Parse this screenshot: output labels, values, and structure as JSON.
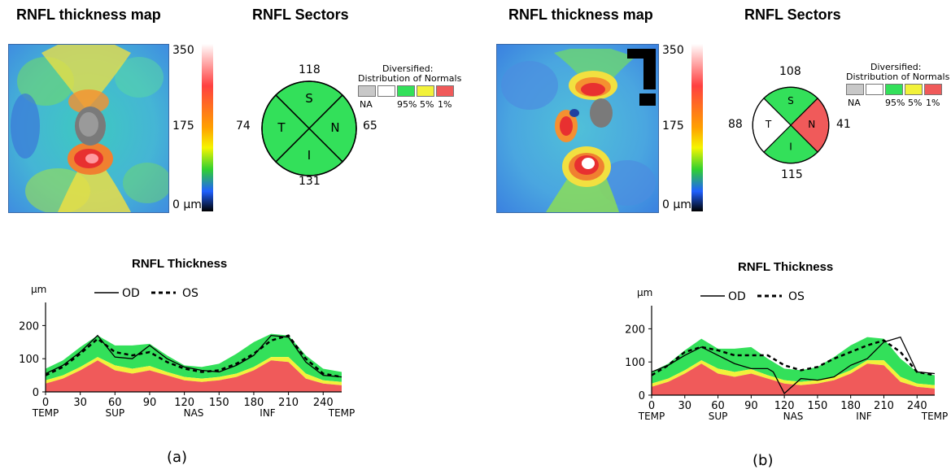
{
  "panels": [
    {
      "caption": "(a)",
      "map_title": "RNFL thickness map",
      "sectors_title": "RNFL Sectors",
      "scale_labels": {
        "top": "350",
        "mid": "175",
        "bottom": "0 µm"
      },
      "sectors": {
        "S": {
          "label": "S",
          "value": "118",
          "color": "#33e05a"
        },
        "N": {
          "label": "N",
          "value": "65",
          "color": "#33e05a"
        },
        "I": {
          "label": "I",
          "value": "131",
          "color": "#33e05a"
        },
        "T": {
          "label": "T",
          "value": "74",
          "color": "#33e05a"
        }
      },
      "legend": {
        "title_line1": "Diversified:",
        "title_line2": "Distribution of Normals",
        "labels": [
          "NA",
          "95%",
          "5%",
          "1%"
        ]
      },
      "chart_title": "RNFL Thickness",
      "chart_series_labels": [
        "OD",
        "OS"
      ]
    },
    {
      "caption": "(b)",
      "map_title": "RNFL thickness map",
      "sectors_title": "RNFL Sectors",
      "scale_labels": {
        "top": "350",
        "mid": "175",
        "bottom": "0 µm"
      },
      "sectors": {
        "S": {
          "label": "S",
          "value": "108",
          "color": "#33e05a"
        },
        "N": {
          "label": "N",
          "value": "41",
          "color": "#f05a5a"
        },
        "I": {
          "label": "I",
          "value": "115",
          "color": "#33e05a"
        },
        "T": {
          "label": "T",
          "value": "88",
          "color": "#ffffff"
        }
      },
      "legend": {
        "title_line1": "Diversified:",
        "title_line2": "Distribution of Normals",
        "labels": [
          "NA",
          "95%",
          "5%",
          "1%"
        ]
      },
      "chart_title": "RNFL Thickness",
      "chart_series_labels": [
        "OD",
        "OS"
      ]
    }
  ],
  "legend_colors": {
    "NA": "#c8c8c8",
    "normal_upper": "#ffffff",
    "p95": "#33e05a",
    "p5": "#f2f23a",
    "p1": "#f05a5a"
  },
  "chart_data": [
    {
      "type": "line",
      "title": "RNFL Thickness",
      "ylabel": "µm",
      "xlim": [
        0,
        256
      ],
      "ylim": [
        0,
        250
      ],
      "xticks": [
        0,
        30,
        60,
        90,
        120,
        150,
        180,
        210,
        240
      ],
      "yticks": [
        0,
        100,
        200
      ],
      "region_labels": [
        {
          "x": 0,
          "text": "TEMP"
        },
        {
          "x": 60,
          "text": "SUP"
        },
        {
          "x": 128,
          "text": "NAS"
        },
        {
          "x": 192,
          "text": "INF"
        },
        {
          "x": 256,
          "text": "TEMP"
        }
      ],
      "x": [
        0,
        15,
        30,
        45,
        60,
        75,
        90,
        105,
        120,
        135,
        150,
        165,
        180,
        195,
        210,
        225,
        240,
        256
      ],
      "bands": {
        "p1_upper": [
          25,
          40,
          65,
          95,
          65,
          55,
          65,
          50,
          35,
          30,
          35,
          45,
          65,
          95,
          90,
          40,
          25,
          20
        ],
        "p5_upper": [
          35,
          50,
          75,
          105,
          80,
          70,
          78,
          60,
          45,
          40,
          45,
          55,
          75,
          105,
          105,
          55,
          35,
          30
        ],
        "p95_upper": [
          70,
          95,
          135,
          170,
          140,
          140,
          145,
          110,
          80,
          75,
          85,
          115,
          150,
          175,
          170,
          110,
          70,
          60
        ]
      },
      "series": [
        {
          "name": "OD",
          "values": [
            55,
            80,
            120,
            170,
            105,
            100,
            140,
            100,
            75,
            65,
            60,
            80,
            110,
            170,
            165,
            90,
            50,
            45
          ]
        },
        {
          "name": "OS",
          "values": [
            50,
            75,
            115,
            160,
            120,
            110,
            120,
            90,
            70,
            60,
            65,
            85,
            115,
            155,
            170,
            100,
            55,
            45
          ]
        }
      ]
    },
    {
      "type": "line",
      "title": "RNFL Thickness",
      "ylabel": "µm",
      "xlim": [
        0,
        256
      ],
      "ylim": [
        0,
        250
      ],
      "xticks": [
        0,
        30,
        60,
        90,
        120,
        150,
        180,
        210,
        240
      ],
      "yticks": [
        0,
        100,
        200
      ],
      "region_labels": [
        {
          "x": 0,
          "text": "TEMP"
        },
        {
          "x": 60,
          "text": "SUP"
        },
        {
          "x": 128,
          "text": "NAS"
        },
        {
          "x": 192,
          "text": "INF"
        },
        {
          "x": 256,
          "text": "TEMP"
        }
      ],
      "x": [
        0,
        15,
        30,
        45,
        60,
        75,
        90,
        105,
        110,
        120,
        135,
        150,
        165,
        180,
        195,
        210,
        225,
        240,
        256
      ],
      "bands": {
        "p1_upper": [
          25,
          40,
          65,
          95,
          65,
          55,
          65,
          50,
          45,
          35,
          30,
          35,
          45,
          65,
          95,
          90,
          40,
          25,
          20
        ],
        "p5_upper": [
          35,
          50,
          75,
          105,
          80,
          70,
          78,
          60,
          55,
          45,
          40,
          45,
          55,
          75,
          105,
          105,
          55,
          35,
          30
        ],
        "p95_upper": [
          70,
          95,
          135,
          170,
          140,
          140,
          145,
          110,
          100,
          80,
          75,
          85,
          115,
          150,
          175,
          170,
          110,
          70,
          60
        ]
      },
      "series": [
        {
          "name": "OD",
          "values": [
            70,
            90,
            120,
            145,
            120,
            95,
            80,
            80,
            70,
            5,
            50,
            45,
            55,
            90,
            110,
            160,
            175,
            70,
            65
          ]
        },
        {
          "name": "OS",
          "values": [
            60,
            90,
            130,
            145,
            135,
            120,
            120,
            120,
            110,
            90,
            75,
            85,
            110,
            130,
            150,
            165,
            130,
            70,
            60
          ]
        }
      ]
    }
  ]
}
